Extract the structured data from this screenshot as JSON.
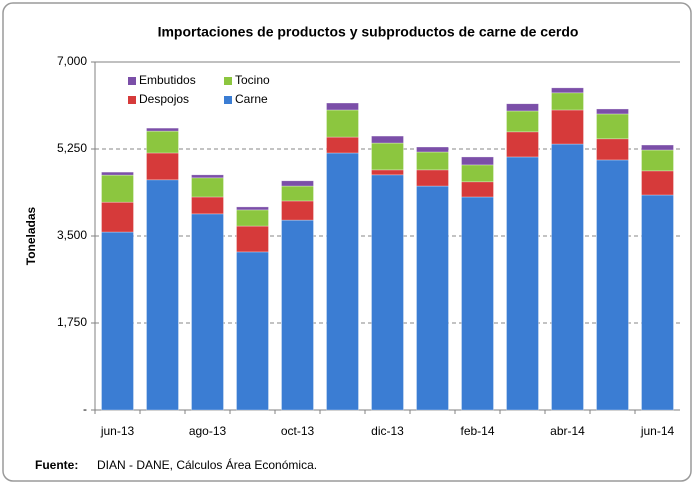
{
  "chart_data": {
    "type": "stacked_bar",
    "title": "Importaciones de productos y subproductos de carne de cerdo",
    "y_label": "Toneladas",
    "categories": [
      "jun-13",
      null,
      "ago-13",
      null,
      "oct-13",
      null,
      "dic-13",
      null,
      "feb-14",
      null,
      "abr-14",
      null,
      "jun-14"
    ],
    "series": [
      {
        "name": "Carne",
        "color": "#3b7dd3",
        "values": [
          3580,
          4630,
          3945,
          3180,
          3820,
          5170,
          4730,
          4505,
          4285,
          5090,
          5350,
          5030,
          4325
        ]
      },
      {
        "name": "Despojos",
        "color": "#d63a3a",
        "values": [
          600,
          540,
          340,
          520,
          385,
          320,
          100,
          325,
          305,
          505,
          685,
          425,
          485
        ]
      },
      {
        "name": "Tocino",
        "color": "#8cc63f",
        "values": [
          545,
          440,
          385,
          325,
          300,
          545,
          540,
          360,
          340,
          420,
          345,
          500,
          420
        ]
      },
      {
        "name": "Embutidos",
        "color": "#7b4fa8",
        "values": [
          60,
          60,
          60,
          60,
          105,
          140,
          140,
          100,
          160,
          145,
          100,
          100,
          100
        ]
      }
    ],
    "ylim": [
      0,
      7000
    ],
    "yticks": [
      {
        "value": 0,
        "label": "-"
      },
      {
        "value": 1750,
        "label": "1,750"
      },
      {
        "value": 3500,
        "label": "3,500"
      },
      {
        "value": 5250,
        "label": "5,250"
      },
      {
        "value": 7000,
        "label": "7,000"
      }
    ],
    "grid": true,
    "source": {
      "label": "Fuente:",
      "text": "DIAN - DANE,  Cálculos Área Económica."
    }
  }
}
